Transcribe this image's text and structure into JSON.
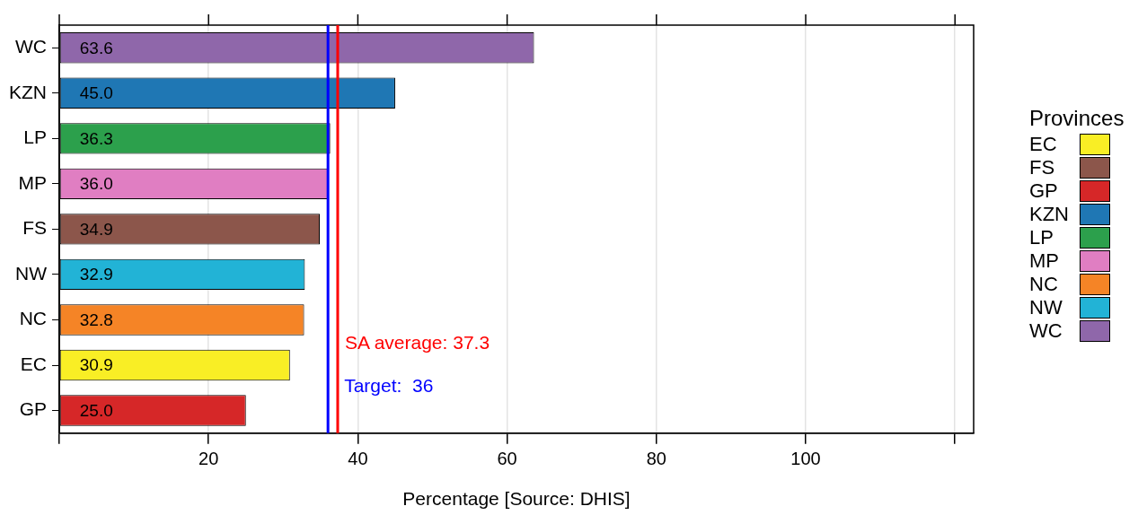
{
  "chart_data": {
    "type": "bar",
    "orientation": "horizontal",
    "stacked": true,
    "xlabel": "Percentage [Source: DHIS]",
    "legend_title": "Provinces",
    "legend": "right",
    "categories": [
      "WC",
      "KZN",
      "LP",
      "MP",
      "FS",
      "NW",
      "NC",
      "EC",
      "GP"
    ],
    "series": [
      {
        "name": "EC",
        "color": "#f9ee25",
        "values": [
          null,
          null,
          null,
          null,
          null,
          null,
          null,
          30.9,
          null
        ],
        "value_labels": [
          null,
          null,
          null,
          null,
          null,
          null,
          null,
          "30.9",
          null
        ]
      },
      {
        "name": "FS",
        "color": "#8c564b",
        "values": [
          null,
          null,
          null,
          null,
          34.9,
          null,
          null,
          null,
          null
        ],
        "value_labels": [
          null,
          null,
          null,
          null,
          "34.9",
          null,
          null,
          null,
          null
        ]
      },
      {
        "name": "GP",
        "color": "#d62728",
        "values": [
          null,
          null,
          null,
          null,
          null,
          null,
          null,
          null,
          25.0
        ],
        "value_labels": [
          null,
          null,
          null,
          null,
          null,
          null,
          null,
          null,
          "25.0"
        ]
      },
      {
        "name": "KZN",
        "color": "#1f77b4",
        "values": [
          null,
          45.0,
          null,
          null,
          null,
          null,
          null,
          null,
          null
        ],
        "value_labels": [
          null,
          "45.0",
          null,
          null,
          null,
          null,
          null,
          null,
          null
        ]
      },
      {
        "name": "LP",
        "color": "#2ca04c",
        "values": [
          null,
          null,
          36.3,
          null,
          null,
          null,
          null,
          null,
          null
        ],
        "value_labels": [
          null,
          null,
          "36.3",
          null,
          null,
          null,
          null,
          null,
          null
        ]
      },
      {
        "name": "MP",
        "color": "#e07ec2",
        "values": [
          null,
          null,
          null,
          36.0,
          null,
          null,
          null,
          null,
          null
        ],
        "value_labels": [
          null,
          null,
          null,
          "36.0",
          null,
          null,
          null,
          null,
          null
        ]
      },
      {
        "name": "NC",
        "color": "#f58426",
        "values": [
          null,
          null,
          null,
          null,
          null,
          null,
          32.8,
          null,
          null
        ],
        "value_labels": [
          null,
          null,
          null,
          null,
          null,
          null,
          "32.8",
          null,
          null
        ]
      },
      {
        "name": "NW",
        "color": "#22b3d6",
        "values": [
          null,
          null,
          null,
          null,
          null,
          32.9,
          null,
          null,
          null
        ],
        "value_labels": [
          null,
          null,
          null,
          null,
          null,
          "32.9",
          null,
          null,
          null
        ]
      },
      {
        "name": "WC",
        "color": "#8f67aa",
        "values": [
          63.6,
          null,
          null,
          null,
          null,
          null,
          null,
          null,
          null
        ],
        "value_labels": [
          "63.6",
          null,
          null,
          null,
          null,
          null,
          null,
          null,
          null
        ]
      }
    ],
    "xlim": [
      0,
      122.5
    ],
    "xticks": [
      {
        "value": 0,
        "label": null
      },
      20,
      40,
      60,
      80,
      100,
      {
        "value": 120,
        "label": null
      }
    ],
    "grid": "x",
    "ref_lines": [
      {
        "axis": "x",
        "value": 37.3,
        "label": "SA average: 37.3",
        "color": "#ff0000"
      },
      {
        "axis": "x",
        "value": 36,
        "label": "Target:  36",
        "color": "#0000ff"
      }
    ]
  }
}
